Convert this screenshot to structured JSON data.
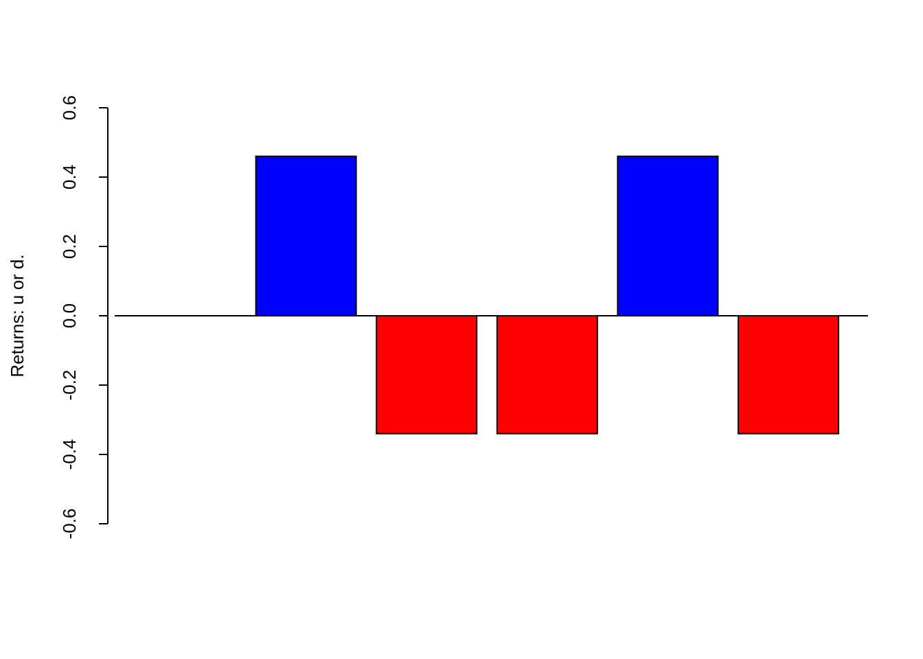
{
  "chart_data": {
    "type": "bar",
    "title": "",
    "xlabel": "",
    "ylabel": "Returns: u or d.",
    "ylim": [
      -0.6,
      0.6
    ],
    "yticks": [
      -0.6,
      -0.4,
      -0.2,
      0.0,
      0.2,
      0.4,
      0.6
    ],
    "ytick_labels": [
      "-0.6",
      "-0.4",
      "-0.2",
      "0.0",
      "0.2",
      "0.4",
      "0.6"
    ],
    "categories": [
      "",
      "",
      "",
      "",
      "",
      ""
    ],
    "values": [
      0.0,
      0.46,
      -0.34,
      -0.34,
      0.46,
      -0.34
    ],
    "grid": false,
    "colors": {
      "positive": "#0000FF",
      "negative": "#FF0000",
      "border": "#000000"
    }
  }
}
